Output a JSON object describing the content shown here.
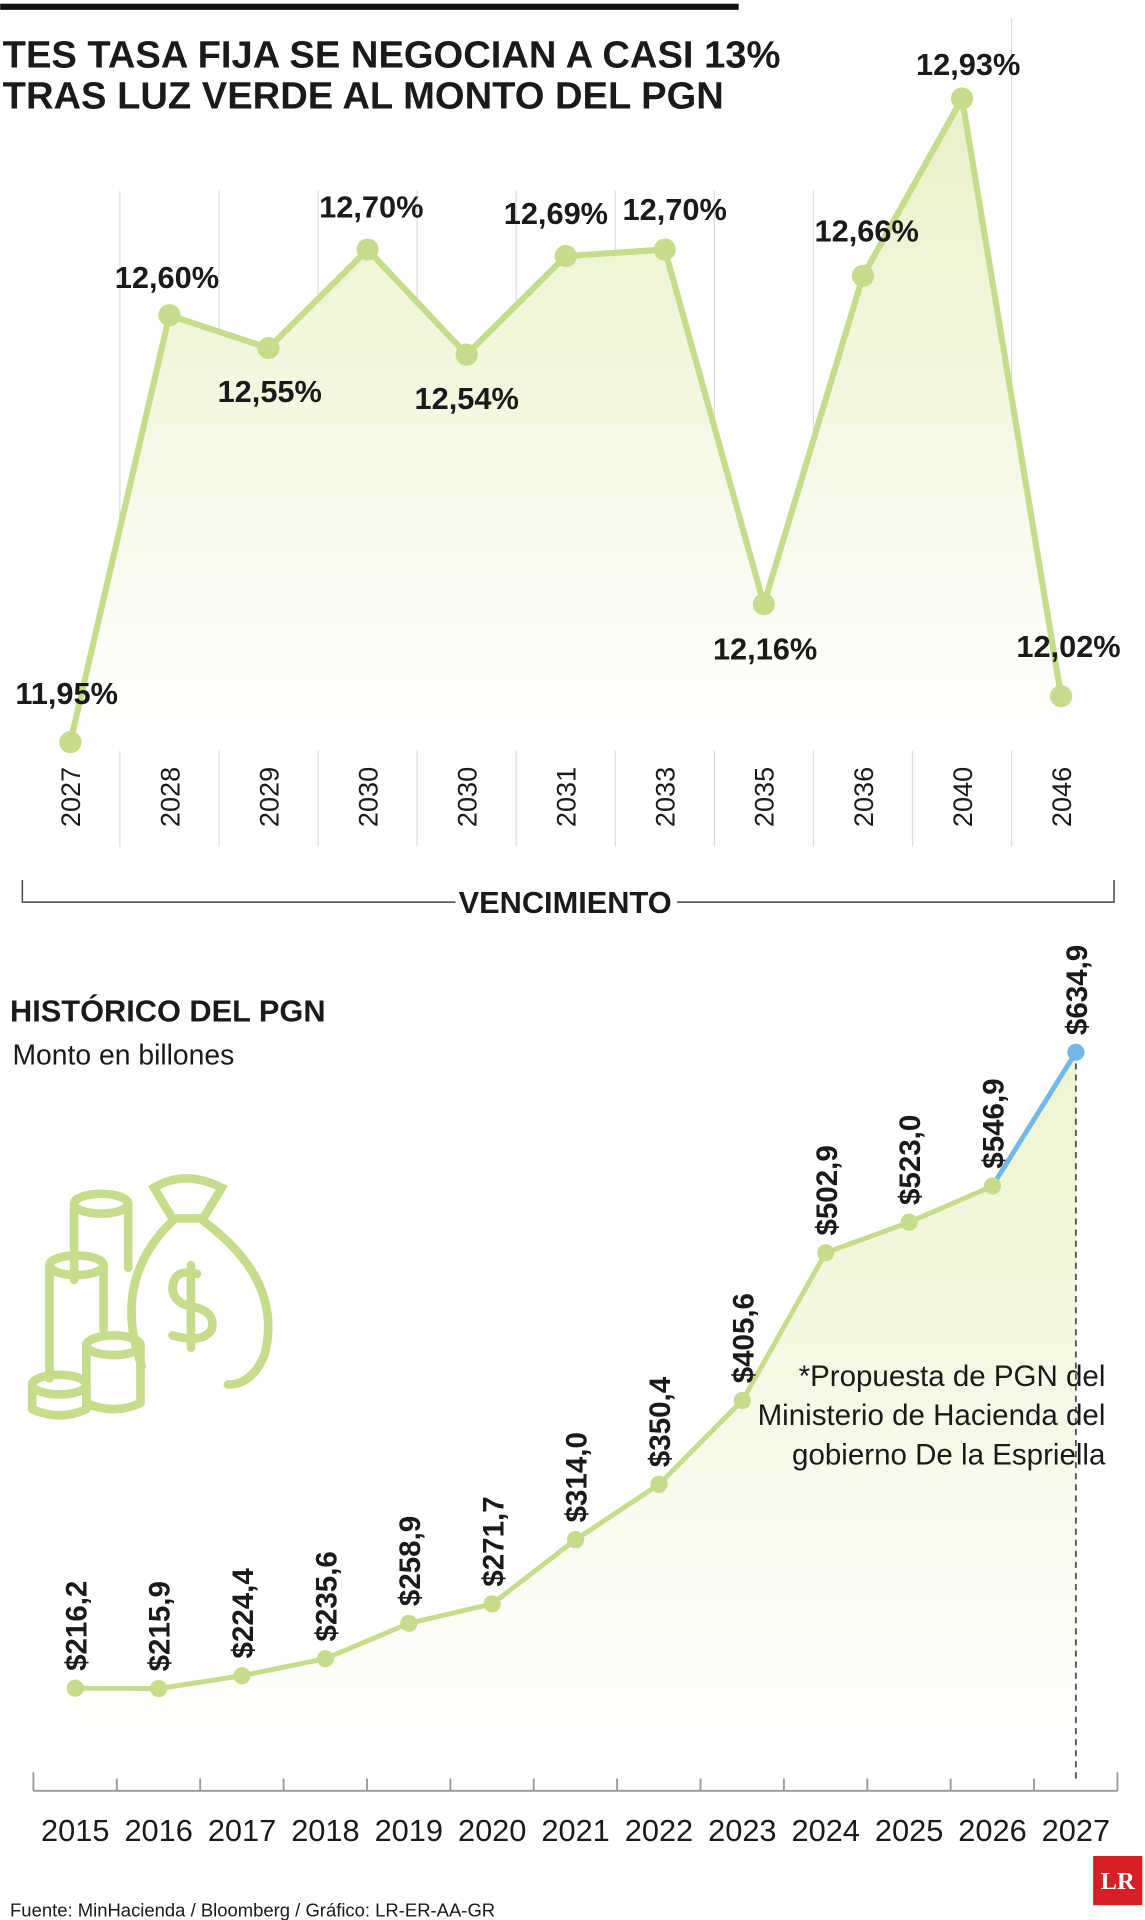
{
  "chart_data": [
    {
      "type": "line",
      "title_lines": [
        "TES TASA FIJA SE NEGOCIAN A CASI 13%",
        "TRAS LUZ VERDE AL MONTO DEL PGN"
      ],
      "x_label": "VENCIMIENTO",
      "categories": [
        "2027",
        "2028",
        "2029",
        "2030",
        "2030",
        "2031",
        "2033",
        "2035",
        "2036",
        "2040",
        "2046"
      ],
      "values": [
        11.95,
        12.6,
        12.55,
        12.7,
        12.54,
        12.69,
        12.7,
        12.16,
        12.66,
        12.93,
        12.02
      ],
      "value_labels": [
        "11,95%",
        "12,60%",
        "12,55%",
        "12,70%",
        "12,54%",
        "12,69%",
        "12,70%",
        "12,16%",
        "12,66%",
        "12,93%",
        "12,02%"
      ],
      "color": "#c5dc8a"
    },
    {
      "type": "line",
      "title": "HISTÓRICO DEL PGN",
      "subtitle": "Monto en billones",
      "categories": [
        "2015",
        "2016",
        "2017",
        "2018",
        "2019",
        "2020",
        "2021",
        "2022",
        "2023",
        "2024",
        "2025",
        "2026",
        "2027"
      ],
      "values": [
        216.2,
        215.9,
        224.4,
        235.6,
        258.9,
        271.7,
        314.0,
        350.4,
        405.6,
        502.9,
        523.0,
        546.9,
        634.9
      ],
      "value_labels": [
        "$216,2",
        "$215,9",
        "$224,4",
        "$235,6",
        "$258,9",
        "$271,7",
        "$314,0",
        "$350,4",
        "$405,6",
        "$502,9",
        "$523,0",
        "$546,9",
        "$634,9"
      ],
      "color": "#c5dc8a",
      "highlight_color": "#74b9e6",
      "annotation": [
        "*Propuesta de PGN del",
        "Ministerio de Hacienda del",
        "gobierno De la Espriella"
      ]
    }
  ],
  "source": "Fuente: MinHacienda / Bloomberg / Gráfico: LR-ER-AA-GR",
  "logo": "LR"
}
